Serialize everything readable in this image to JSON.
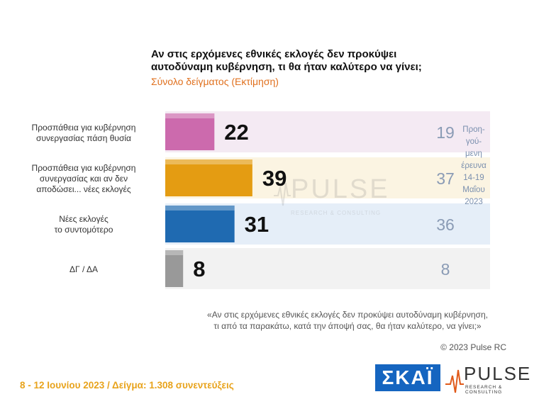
{
  "title_lines": [
    "Αν στις ερχόμενες εθνικές εκλογές δεν προκύψει",
    "αυτοδύναμη κυβέρνηση, τι θα ήταν καλύτερο να γίνει;"
  ],
  "subtitle": "Σύνολο δείγματος   (Εκτίμηση)",
  "chart_data": {
    "type": "bar",
    "orientation": "horizontal",
    "categories": [
      [
        "Προσπάθεια για κυβέρνηση",
        "συνεργασίας πάση θυσία"
      ],
      [
        "Προσπάθεια για κυβέρνηση",
        "συνεργασίας και αν δεν",
        "αποδώσει... νέες εκλογές"
      ],
      [
        "Νέες εκλογές",
        "το συντομότερο"
      ],
      [
        "ΔΓ / ΔΑ"
      ]
    ],
    "series": [
      {
        "values": [
          22,
          39,
          31,
          8
        ]
      },
      {
        "name": "Προηγούμενη έρευνα 14-19 Μαΐου 2023",
        "values": [
          19,
          37,
          36,
          8
        ]
      }
    ],
    "xlim": [
      0,
      100
    ],
    "colors": [
      "#cc6aad",
      "#e49c12",
      "#1f6ab1",
      "#999999"
    ],
    "track_colors": [
      "#f4eaf3",
      "#fbf4e2",
      "#e5eef8",
      "#f2f2f2"
    ],
    "grid": false,
    "legend": "none"
  },
  "prev_note_lines": [
    "Προη-",
    "γού-",
    "μενη",
    "έρευνα",
    "14-19",
    "Μαΐου",
    "2023"
  ],
  "question_lines": [
    "«Αν στις ερχόμενες εθνικές εκλογές δεν προκύψει αυτοδύναμη κυβέρνηση,",
    "τι από τα παρακάτω, κατά την άποψή σας, θα ήταν καλύτερο, να γίνει;»"
  ],
  "copyright": "© 2023 Pulse RC",
  "footer": "8 - 12  Ιουνίου  2023  /  Δείγμα:  1.308 συνεντεύξεις",
  "logos": {
    "skai": "ΣΚΑΪ",
    "pulse": "PULSE",
    "pulse_tagline": "RESEARCH & CONSULTING"
  },
  "watermark": {
    "word": "PULSE",
    "tagline": "RESEARCH & CONSULTING"
  }
}
